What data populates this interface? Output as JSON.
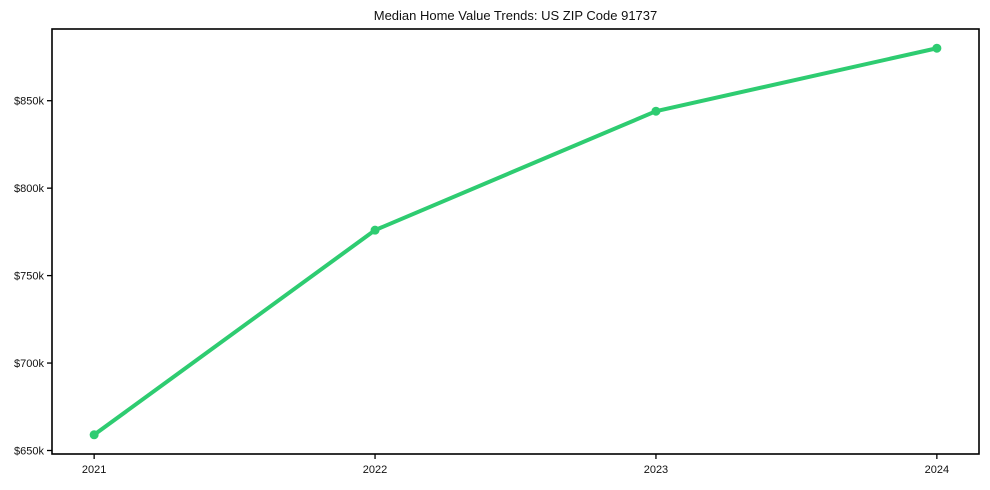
{
  "chart_data": {
    "type": "line",
    "title": "Median Home Value Trends: US ZIP Code 91737",
    "xlabel": "",
    "ylabel": "",
    "x": [
      2021,
      2022,
      2023,
      2024
    ],
    "xtick_labels": [
      "2021",
      "2022",
      "2023",
      "2024"
    ],
    "series": [
      {
        "name": "Median Home Value",
        "values": [
          659000,
          776000,
          844000,
          880000
        ]
      }
    ],
    "yticks": [
      650000,
      700000,
      750000,
      800000,
      850000
    ],
    "ytick_labels": [
      "$650k",
      "$700k",
      "$750k",
      "$800k",
      "$850k"
    ],
    "xlim": [
      2020.85,
      2024.15
    ],
    "ylim": [
      648000,
      891000
    ],
    "grid": false,
    "legend": "none",
    "line_color": "#2ecc71",
    "marker": "circle",
    "marker_color": "#2ecc71",
    "spine_color": "#000000",
    "text_color": "#111111",
    "background_color": "#ffffff"
  }
}
